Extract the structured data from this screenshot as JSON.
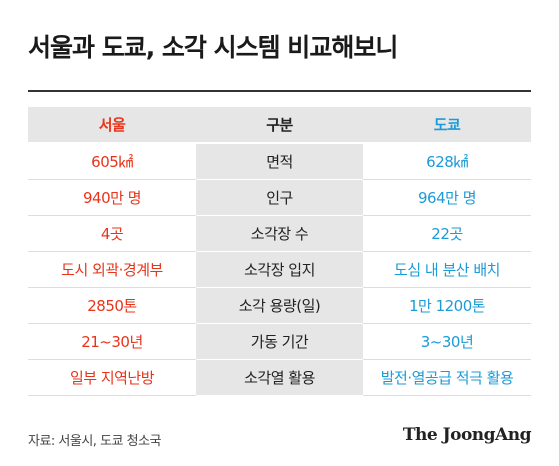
{
  "title": "서울과 도쿄, 소각 시스템 비교해보니",
  "chart_data": {
    "type": "table",
    "columns": [
      "서울",
      "구분",
      "도쿄"
    ],
    "rows": [
      [
        "605㎢",
        "면적",
        "628㎢"
      ],
      [
        "940만 명",
        "인구",
        "964만 명"
      ],
      [
        "4곳",
        "소각장 수",
        "22곳"
      ],
      [
        "도시 외곽·경계부",
        "소각장 입지",
        "도심 내 분산 배치"
      ],
      [
        "2850톤",
        "소각 용량(일)",
        "1만 1200톤"
      ],
      [
        "21~30년",
        "가동 기간",
        "3~30년"
      ],
      [
        "일부 지역난방",
        "소각열 활용",
        "발전·열공급 적극 활용"
      ]
    ]
  },
  "colors": {
    "seoul": "#e8341b",
    "tokyo": "#1b9bd7",
    "middle_bg": "#e6e6e6"
  },
  "source": "자료: 서울시, 도쿄 청소국",
  "brand": "The JoongAng"
}
